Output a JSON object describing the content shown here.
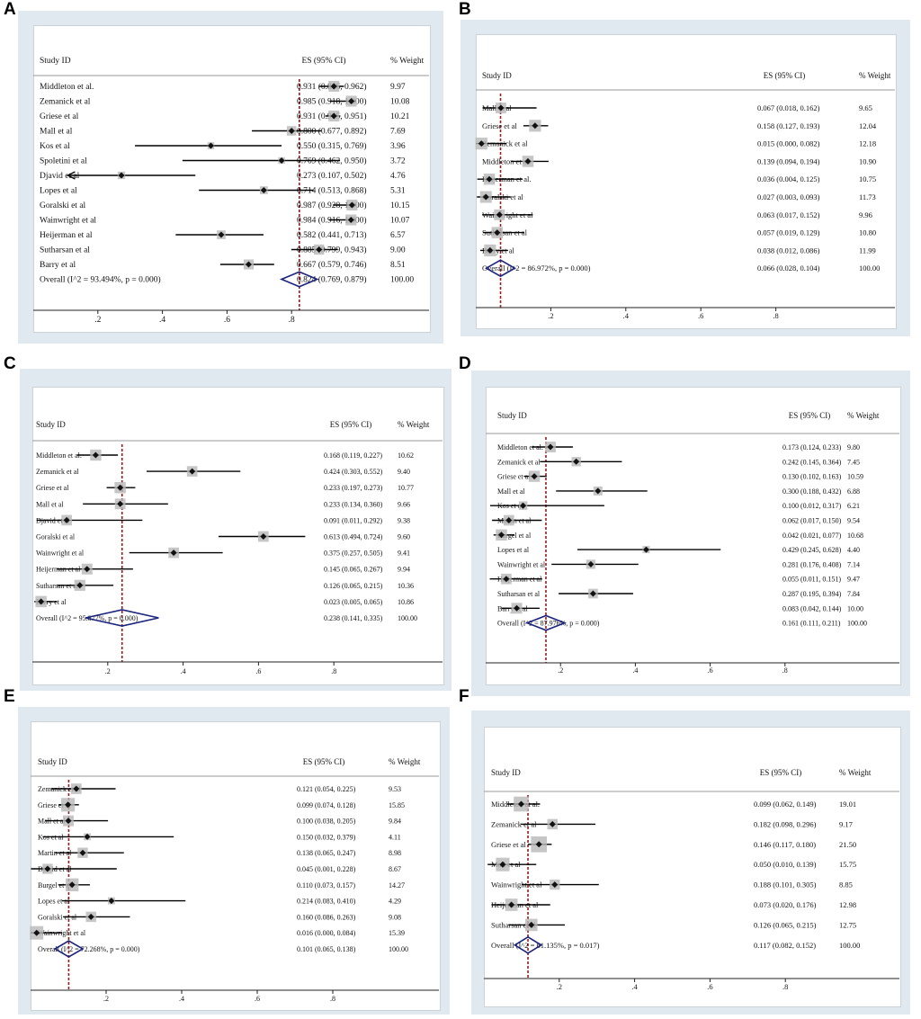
{
  "colors": {
    "background": "#dfe9ef",
    "null_line": "#9b1b1b",
    "diamond": "#1a237e",
    "ci_line": "#000000",
    "weight_box": "#b8b8b8"
  },
  "headers": {
    "study": "Study ID",
    "es": "ES (95% CI)",
    "weight": "% Weight"
  },
  "chart_data": [
    {
      "panel": "A",
      "type": "forest",
      "xlim": [
        0,
        1
      ],
      "ticks": [
        ".2",
        ".4",
        ".6",
        ".8"
      ],
      "tick_values": [
        0.2,
        0.4,
        0.6,
        0.8
      ],
      "null_value": 0.824,
      "studies": [
        {
          "name": "Middleton et al.",
          "es": 0.931,
          "lo": 0.886,
          "hi": 0.962,
          "label": "0.931 (0.886, 0.962)",
          "weight": "9.97"
        },
        {
          "name": "Zemanick et al",
          "es": 0.985,
          "lo": 0.918,
          "hi": 1.0,
          "label": "0.985 (0.918, 1.000)",
          "weight": "10.08"
        },
        {
          "name": "Griese et al",
          "es": 0.931,
          "lo": 0.905,
          "hi": 0.951,
          "label": "0.931 (0.905, 0.951)",
          "weight": "10.21"
        },
        {
          "name": "Mall et al",
          "es": 0.8,
          "lo": 0.677,
          "hi": 0.892,
          "label": "0.800 (0.677, 0.892)",
          "weight": "7.69"
        },
        {
          "name": "Kos et al",
          "es": 0.55,
          "lo": 0.315,
          "hi": 0.769,
          "label": "0.550 (0.315, 0.769)",
          "weight": "3.96"
        },
        {
          "name": "Spoletini  et al",
          "es": 0.769,
          "lo": 0.462,
          "hi": 0.95,
          "label": "0.769 (0.462, 0.950)",
          "weight": "3.72"
        },
        {
          "name": "Djavid et al",
          "es": 0.273,
          "lo": 0.107,
          "hi": 0.502,
          "label": "0.273 (0.107, 0.502)",
          "weight": "4.76"
        },
        {
          "name": "Lopes et al",
          "es": 0.714,
          "lo": 0.513,
          "hi": 0.868,
          "label": "0.714 (0.513, 0.868)",
          "weight": "5.31"
        },
        {
          "name": "Goralski et al",
          "es": 0.987,
          "lo": 0.928,
          "hi": 1.0,
          "label": "0.987 (0.928, 1.000)",
          "weight": "10.15"
        },
        {
          "name": "Wainwright et al",
          "es": 0.984,
          "lo": 0.916,
          "hi": 1.0,
          "label": "0.984 (0.916, 1.000)",
          "weight": "10.07"
        },
        {
          "name": "Heijerman et al",
          "es": 0.582,
          "lo": 0.441,
          "hi": 0.713,
          "label": "0.582 (0.441, 0.713)",
          "weight": "6.57"
        },
        {
          "name": "Sutharsan et al",
          "es": 0.885,
          "lo": 0.799,
          "hi": 0.943,
          "label": "0.885 (0.799, 0.943)",
          "weight": "9.00"
        },
        {
          "name": "Barry et al",
          "es": 0.667,
          "lo": 0.579,
          "hi": 0.746,
          "label": "0.667 (0.579, 0.746)",
          "weight": "8.51"
        }
      ],
      "overall": {
        "name": "Overall  (I^2 = 93.494%, p = 0.000)",
        "es": 0.824,
        "lo": 0.769,
        "hi": 0.879,
        "label": "0.824 (0.769, 0.879)",
        "weight": "100.00"
      }
    },
    {
      "panel": "B",
      "type": "forest",
      "xlim": [
        0,
        1
      ],
      "ticks": [
        ".2",
        ".4",
        ".6",
        ".8"
      ],
      "tick_values": [
        0.2,
        0.4,
        0.6,
        0.8
      ],
      "null_value": 0.066,
      "studies": [
        {
          "name": "Mall et al",
          "es": 0.067,
          "lo": 0.018,
          "hi": 0.162,
          "label": "0.067 (0.018, 0.162)",
          "weight": "9.65"
        },
        {
          "name": "Griese et al",
          "es": 0.158,
          "lo": 0.127,
          "hi": 0.193,
          "label": "0.158 (0.127, 0.193)",
          "weight": "12.04"
        },
        {
          "name": "Zemanick et al",
          "es": 0.015,
          "lo": 0.0,
          "hi": 0.082,
          "label": "0.015 (0.000, 0.082)",
          "weight": "12.18"
        },
        {
          "name": "Middleton et al.",
          "es": 0.139,
          "lo": 0.094,
          "hi": 0.194,
          "label": "0.139 (0.094, 0.194)",
          "weight": "10.90"
        },
        {
          "name": "Heijerman et al.",
          "es": 0.036,
          "lo": 0.004,
          "hi": 0.125,
          "label": "0.036 (0.004, 0.125)",
          "weight": "10.75"
        },
        {
          "name": "Goralski et al",
          "es": 0.027,
          "lo": 0.003,
          "hi": 0.093,
          "label": "0.027 (0.003, 0.093)",
          "weight": "11.73"
        },
        {
          "name": "Wainwright et al",
          "es": 0.063,
          "lo": 0.017,
          "hi": 0.152,
          "label": "0.063 (0.017, 0.152)",
          "weight": "9.96"
        },
        {
          "name": "Sutharsan et al",
          "es": 0.057,
          "lo": 0.019,
          "hi": 0.129,
          "label": "0.057 (0.019, 0.129)",
          "weight": "10.80"
        },
        {
          "name": "Barry et al",
          "es": 0.038,
          "lo": 0.012,
          "hi": 0.086,
          "label": "0.038 (0.012, 0.086)",
          "weight": "11.99"
        }
      ],
      "overall": {
        "name": "Overall  (I^2 = 86.972%, p = 0.000)",
        "es": 0.066,
        "lo": 0.028,
        "hi": 0.104,
        "label": "0.066 (0.028, 0.104)",
        "weight": "100.00"
      }
    },
    {
      "panel": "C",
      "type": "forest",
      "xlim": [
        0,
        1
      ],
      "ticks": [
        ".2",
        ".4",
        ".6",
        ".8"
      ],
      "tick_values": [
        0.2,
        0.4,
        0.6,
        0.8
      ],
      "null_value": 0.238,
      "studies": [
        {
          "name": "Middleton et al.",
          "es": 0.168,
          "lo": 0.119,
          "hi": 0.227,
          "label": "0.168 (0.119, 0.227)",
          "weight": "10.62"
        },
        {
          "name": "Zemanick et al",
          "es": 0.424,
          "lo": 0.303,
          "hi": 0.552,
          "label": "0.424 (0.303, 0.552)",
          "weight": "9.40"
        },
        {
          "name": "Griese et al",
          "es": 0.233,
          "lo": 0.197,
          "hi": 0.273,
          "label": "0.233 (0.197, 0.273)",
          "weight": "10.77"
        },
        {
          "name": "Mall et al",
          "es": 0.233,
          "lo": 0.134,
          "hi": 0.36,
          "label": "0.233 (0.134, 0.360)",
          "weight": "9.66"
        },
        {
          "name": "Djavid et al",
          "es": 0.091,
          "lo": 0.011,
          "hi": 0.292,
          "label": "0.091 (0.011, 0.292)",
          "weight": "9.38"
        },
        {
          "name": "Goralski et al",
          "es": 0.613,
          "lo": 0.494,
          "hi": 0.724,
          "label": "0.613 (0.494, 0.724)",
          "weight": "9.60"
        },
        {
          "name": "Wainwright et al",
          "es": 0.375,
          "lo": 0.257,
          "hi": 0.505,
          "label": "0.375 (0.257, 0.505)",
          "weight": "9.41"
        },
        {
          "name": "Heijerman et al",
          "es": 0.145,
          "lo": 0.065,
          "hi": 0.267,
          "label": "0.145 (0.065, 0.267)",
          "weight": "9.94"
        },
        {
          "name": "Sutharsan et al",
          "es": 0.126,
          "lo": 0.065,
          "hi": 0.215,
          "label": "0.126 (0.065, 0.215)",
          "weight": "10.36"
        },
        {
          "name": "Barry et al",
          "es": 0.023,
          "lo": 0.005,
          "hi": 0.065,
          "label": "0.023 (0.005, 0.065)",
          "weight": "10.86"
        }
      ],
      "overall": {
        "name": "Overall  (I^2 = 95.877%, p = 0.000)",
        "es": 0.238,
        "lo": 0.141,
        "hi": 0.335,
        "label": "0.238 (0.141, 0.335)",
        "weight": "100.00"
      }
    },
    {
      "panel": "D",
      "type": "forest",
      "xlim": [
        0,
        1
      ],
      "ticks": [
        ".2",
        ".4",
        ".6",
        ".8"
      ],
      "tick_values": [
        0.2,
        0.4,
        0.6,
        0.8
      ],
      "null_value": 0.161,
      "studies": [
        {
          "name": "Middleton et al.",
          "es": 0.173,
          "lo": 0.124,
          "hi": 0.233,
          "label": "0.173 (0.124, 0.233)",
          "weight": "9.80"
        },
        {
          "name": "Zemanick et al",
          "es": 0.242,
          "lo": 0.145,
          "hi": 0.364,
          "label": "0.242 (0.145, 0.364)",
          "weight": "7.45"
        },
        {
          "name": "Griese et al",
          "es": 0.13,
          "lo": 0.102,
          "hi": 0.163,
          "label": "0.130 (0.102, 0.163)",
          "weight": "10.59"
        },
        {
          "name": "Mall et al",
          "es": 0.3,
          "lo": 0.188,
          "hi": 0.432,
          "label": "0.300 (0.188, 0.432)",
          "weight": "6.88"
        },
        {
          "name": "Kos et al",
          "es": 0.1,
          "lo": 0.012,
          "hi": 0.317,
          "label": "0.100 (0.012, 0.317)",
          "weight": "6.21"
        },
        {
          "name": "Martin et al",
          "es": 0.062,
          "lo": 0.017,
          "hi": 0.15,
          "label": "0.062 (0.017, 0.150)",
          "weight": "9.54"
        },
        {
          "name": "Burgel et al",
          "es": 0.042,
          "lo": 0.021,
          "hi": 0.077,
          "label": "0.042 (0.021, 0.077)",
          "weight": "10.68"
        },
        {
          "name": "Lopes et al",
          "es": 0.429,
          "lo": 0.245,
          "hi": 0.628,
          "label": "0.429 (0.245, 0.628)",
          "weight": "4.40"
        },
        {
          "name": "Wainwright et al",
          "es": 0.281,
          "lo": 0.176,
          "hi": 0.408,
          "label": "0.281 (0.176, 0.408)",
          "weight": "7.14"
        },
        {
          "name": "Heijerman et al",
          "es": 0.055,
          "lo": 0.011,
          "hi": 0.151,
          "label": "0.055 (0.011, 0.151)",
          "weight": "9.47"
        },
        {
          "name": "Sutharsan et al",
          "es": 0.287,
          "lo": 0.195,
          "hi": 0.394,
          "label": "0.287 (0.195, 0.394)",
          "weight": "7.84"
        },
        {
          "name": "Barry et al",
          "es": 0.083,
          "lo": 0.042,
          "hi": 0.144,
          "label": "0.083 (0.042, 0.144)",
          "weight": "10.00"
        }
      ],
      "overall": {
        "name": "Overall  (I^2 = 87.976%, p = 0.000)",
        "es": 0.161,
        "lo": 0.111,
        "hi": 0.211,
        "label": "0.161 (0.111, 0.211)",
        "weight": "100.00"
      }
    },
    {
      "panel": "E",
      "type": "forest",
      "xlim": [
        0,
        1
      ],
      "ticks": [
        ".2",
        ".4",
        ".6",
        ".8"
      ],
      "tick_values": [
        0.2,
        0.4,
        0.6,
        0.8
      ],
      "null_value": 0.101,
      "studies": [
        {
          "name": "Zemanick et al",
          "es": 0.121,
          "lo": 0.054,
          "hi": 0.225,
          "label": "0.121 (0.054, 0.225)",
          "weight": "9.53"
        },
        {
          "name": "Griese et al",
          "es": 0.099,
          "lo": 0.074,
          "hi": 0.128,
          "label": "0.099 (0.074, 0.128)",
          "weight": "15.85"
        },
        {
          "name": "Mall et al",
          "es": 0.1,
          "lo": 0.038,
          "hi": 0.205,
          "label": "0.100 (0.038, 0.205)",
          "weight": "9.84"
        },
        {
          "name": "Kos et al",
          "es": 0.15,
          "lo": 0.032,
          "hi": 0.379,
          "label": "0.150 (0.032, 0.379)",
          "weight": "4.11"
        },
        {
          "name": "Martin et al",
          "es": 0.138,
          "lo": 0.065,
          "hi": 0.247,
          "label": "0.138 (0.065, 0.247)",
          "weight": "8.98"
        },
        {
          "name": "Djavid et al",
          "es": 0.045,
          "lo": 0.001,
          "hi": 0.228,
          "label": "0.045 (0.001, 0.228)",
          "weight": "8.67"
        },
        {
          "name": "Burgel et al",
          "es": 0.11,
          "lo": 0.073,
          "hi": 0.157,
          "label": "0.110 (0.073, 0.157)",
          "weight": "14.27"
        },
        {
          "name": "Lopes et al",
          "es": 0.214,
          "lo": 0.083,
          "hi": 0.41,
          "label": "0.214 (0.083, 0.410)",
          "weight": "4.29"
        },
        {
          "name": "Goralski et al",
          "es": 0.16,
          "lo": 0.086,
          "hi": 0.263,
          "label": "0.160 (0.086, 0.263)",
          "weight": "9.08"
        },
        {
          "name": "Wainwright et al",
          "es": 0.016,
          "lo": 0.0,
          "hi": 0.084,
          "label": "0.016 (0.000, 0.084)",
          "weight": "15.39"
        }
      ],
      "overall": {
        "name": "Overall  (I^2 = 72.268%, p = 0.000)",
        "es": 0.101,
        "lo": 0.065,
        "hi": 0.138,
        "label": "0.101 (0.065, 0.138)",
        "weight": "100.00"
      }
    },
    {
      "panel": "F",
      "type": "forest",
      "xlim": [
        0,
        1
      ],
      "ticks": [
        ".2",
        ".4",
        ".6",
        ".8"
      ],
      "tick_values": [
        0.2,
        0.4,
        0.6,
        0.8
      ],
      "null_value": 0.117,
      "studies": [
        {
          "name": "Middleton et al.",
          "es": 0.099,
          "lo": 0.062,
          "hi": 0.149,
          "label": "0.099 (0.062, 0.149)",
          "weight": "19.01"
        },
        {
          "name": "Zemanick et al",
          "es": 0.182,
          "lo": 0.098,
          "hi": 0.296,
          "label": "0.182 (0.098, 0.296)",
          "weight": "9.17"
        },
        {
          "name": "Griese et al",
          "es": 0.146,
          "lo": 0.117,
          "hi": 0.18,
          "label": "0.146 (0.117, 0.180)",
          "weight": "21.50"
        },
        {
          "name": "Mall et al",
          "es": 0.05,
          "lo": 0.01,
          "hi": 0.139,
          "label": "0.050 (0.010, 0.139)",
          "weight": "15.75"
        },
        {
          "name": "Wainwright et al",
          "es": 0.188,
          "lo": 0.101,
          "hi": 0.305,
          "label": "0.188 (0.101, 0.305)",
          "weight": "8.85"
        },
        {
          "name": "Heijerman et al",
          "es": 0.073,
          "lo": 0.02,
          "hi": 0.176,
          "label": "0.073 (0.020, 0.176)",
          "weight": "12.98"
        },
        {
          "name": "Sutharsan et al",
          "es": 0.126,
          "lo": 0.065,
          "hi": 0.215,
          "label": "0.126 (0.065, 0.215)",
          "weight": "12.75"
        }
      ],
      "overall": {
        "name": "Overall  (I^2 = 61.135%, p = 0.017)",
        "es": 0.117,
        "lo": 0.082,
        "hi": 0.152,
        "label": "0.117 (0.082, 0.152)",
        "weight": "100.00"
      }
    }
  ]
}
